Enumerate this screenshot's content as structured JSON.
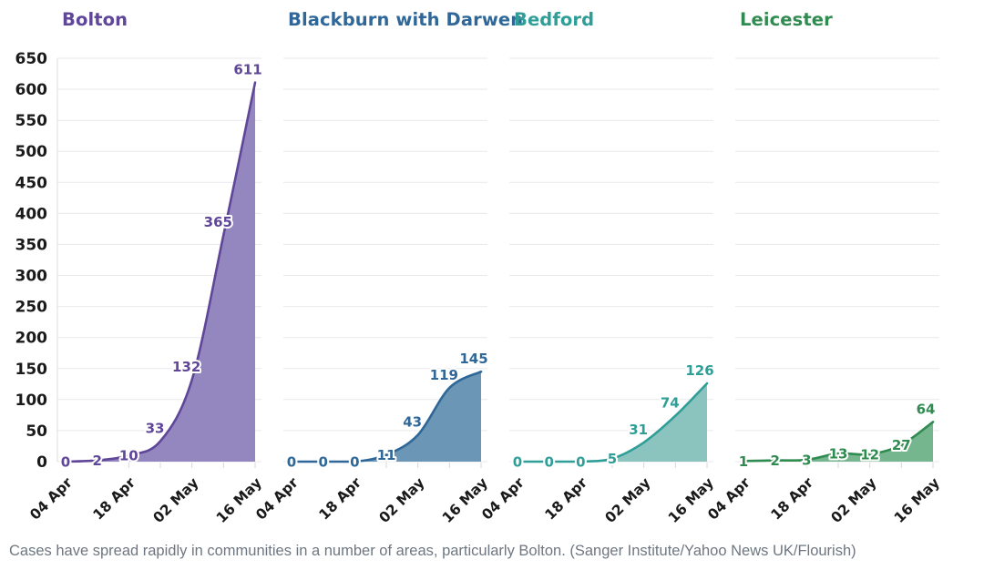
{
  "chart_data": {
    "type": "area",
    "title": "",
    "legend_position": "panel-titles-top",
    "grid": true,
    "ylim": [
      0,
      650
    ],
    "y_ticks": [
      0,
      50,
      100,
      150,
      200,
      250,
      300,
      350,
      400,
      450,
      500,
      550,
      600,
      650
    ],
    "x_tick_labels": [
      "04 Apr",
      "18 Apr",
      "02 May",
      "16 May"
    ],
    "points_per_panel": 7,
    "panels": [
      {
        "name": "Bolton",
        "line_color": "#5f4699",
        "fill_color": "#8e80bc",
        "values": [
          0,
          2,
          10,
          33,
          132,
          365,
          611
        ]
      },
      {
        "name": "Blackburn with Darwen",
        "line_color": "#2f6898",
        "fill_color": "#6390b2",
        "values": [
          0,
          0,
          0,
          11,
          43,
          119,
          145
        ]
      },
      {
        "name": "Bedford",
        "line_color": "#2f9e97",
        "fill_color": "#85c0bc",
        "values": [
          0,
          0,
          0,
          5,
          31,
          74,
          126
        ]
      },
      {
        "name": "Leicester",
        "line_color": "#2f8b50",
        "fill_color": "#6fb288",
        "values": [
          1,
          2,
          3,
          13,
          12,
          27,
          64
        ]
      }
    ]
  },
  "caption": {
    "text": "Cases have spread rapidly in communities in a number of areas, particularly Bolton. (Sanger Institute/Yahoo News UK/Flourish)"
  },
  "colors": {
    "background": "#ffffff",
    "grid": "#e9e9ec",
    "axis_text": "#1a1a1a",
    "caption_text": "#6e7781"
  }
}
